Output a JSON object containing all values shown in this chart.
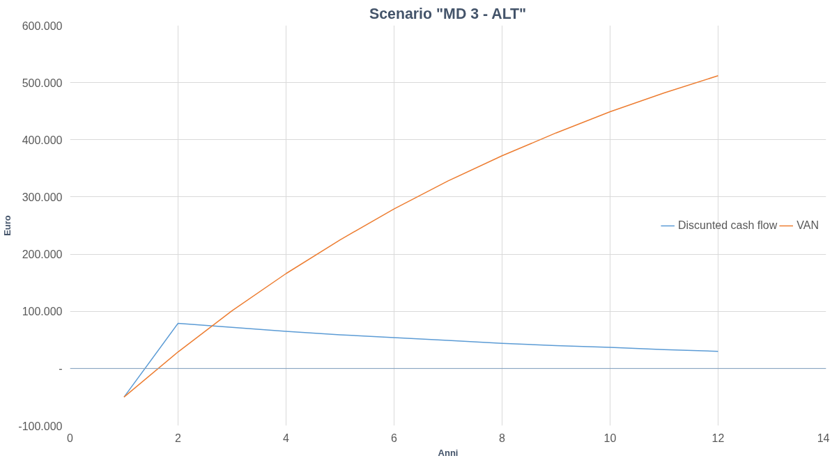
{
  "chart_data": {
    "type": "line",
    "title": "Scenario \"MD 3 - ALT\"",
    "xlabel": "Anni",
    "ylabel": "Euro",
    "x": [
      1,
      2,
      3,
      4,
      5,
      6,
      7,
      8,
      9,
      10,
      11,
      12
    ],
    "series": [
      {
        "name": "Discunted cash flow",
        "color": "#5b9bd5",
        "values": [
          -50000,
          79000,
          72000,
          65000,
          59000,
          54000,
          49000,
          44000,
          40000,
          37000,
          33000,
          30000
        ]
      },
      {
        "name": "VAN",
        "color": "#ed7d31",
        "values": [
          -50000,
          29000,
          101000,
          166000,
          225000,
          279000,
          328000,
          372000,
          412000,
          449000,
          482000,
          512000
        ]
      }
    ],
    "xlim": [
      0,
      14
    ],
    "xticks": [
      0,
      2,
      4,
      6,
      8,
      10,
      12,
      14
    ],
    "ylim": [
      -100000,
      600000
    ],
    "yticks": [
      {
        "value": -100000,
        "label": "-100.000"
      },
      {
        "value": 0,
        "label": "-"
      },
      {
        "value": 100000,
        "label": "100.000"
      },
      {
        "value": 200000,
        "label": "200.000"
      },
      {
        "value": 300000,
        "label": "300.000"
      },
      {
        "value": 400000,
        "label": "400.000"
      },
      {
        "value": 500000,
        "label": "500.000"
      },
      {
        "value": 600000,
        "label": "600.000"
      }
    ],
    "ref_lines": [
      {
        "axis": "y",
        "value": 0,
        "color": "#7f9fbf"
      }
    ],
    "grid": true,
    "legend": "right",
    "marker": "none",
    "line_style": "solid"
  }
}
